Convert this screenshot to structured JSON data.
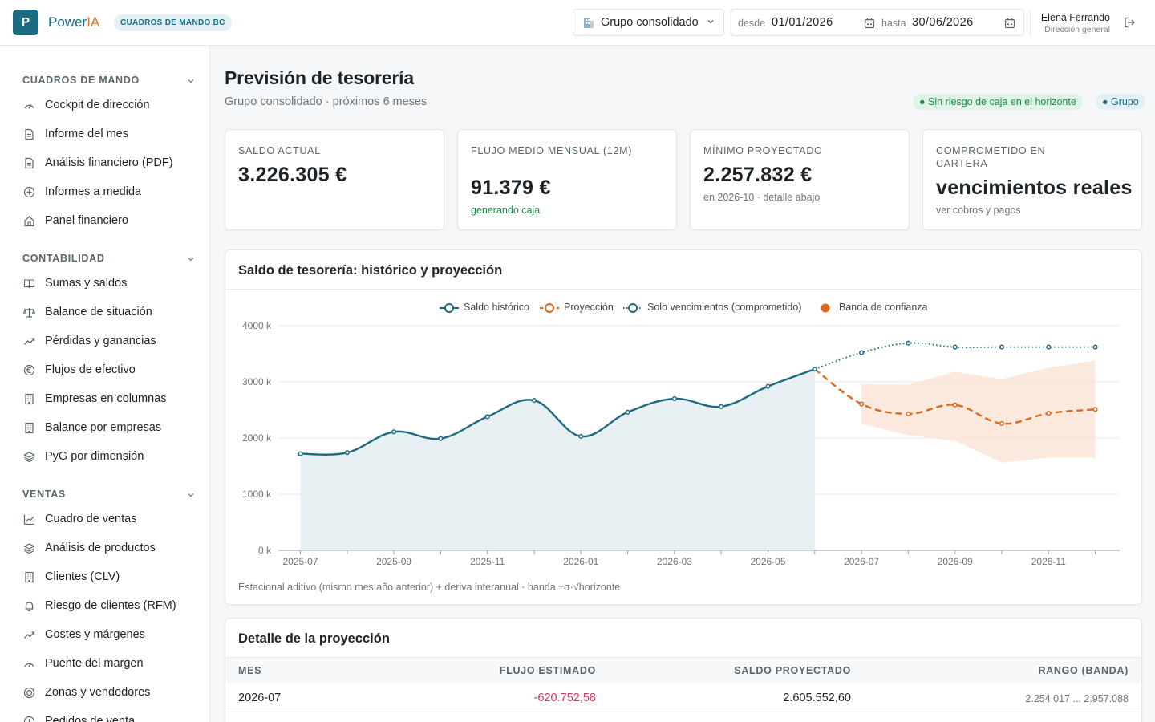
{
  "app": {
    "logo_letter": "P",
    "brand_main": "Power",
    "brand_accent": "IA",
    "badge": "CUADROS DE MANDO BC"
  },
  "topbar": {
    "company": "Grupo consolidado",
    "from_label": "desde",
    "from_value": "01/01/2026",
    "to_label": "hasta",
    "to_value": "30/06/2026",
    "user_name": "Elena Ferrando",
    "user_role": "Dirección general"
  },
  "sidebar": {
    "sections": [
      {
        "title": "CUADROS DE MANDO",
        "items": [
          {
            "label": "Cockpit de dirección",
            "icon": "gauge-icon"
          },
          {
            "label": "Informe del mes",
            "icon": "document-icon"
          },
          {
            "label": "Análisis financiero (PDF)",
            "icon": "document-icon"
          },
          {
            "label": "Informes a medida",
            "icon": "plus-circle-icon"
          },
          {
            "label": "Panel financiero",
            "icon": "home-icon"
          }
        ]
      },
      {
        "title": "CONTABILIDAD",
        "items": [
          {
            "label": "Sumas y saldos",
            "icon": "book-icon"
          },
          {
            "label": "Balance de situación",
            "icon": "scale-icon"
          },
          {
            "label": "Pérdidas y ganancias",
            "icon": "trend-icon"
          },
          {
            "label": "Flujos de efectivo",
            "icon": "euro-icon"
          },
          {
            "label": "Empresas en columnas",
            "icon": "building-icon"
          },
          {
            "label": "Balance por empresas",
            "icon": "building-icon"
          },
          {
            "label": "PyG por dimensión",
            "icon": "layers-icon"
          }
        ]
      },
      {
        "title": "VENTAS",
        "items": [
          {
            "label": "Cuadro de ventas",
            "icon": "line-chart-icon"
          },
          {
            "label": "Análisis de productos",
            "icon": "layers-icon"
          },
          {
            "label": "Clientes (CLV)",
            "icon": "building-icon"
          },
          {
            "label": "Riesgo de clientes (RFM)",
            "icon": "bell-icon"
          },
          {
            "label": "Costes y márgenes",
            "icon": "trend-icon"
          },
          {
            "label": "Puente del margen",
            "icon": "gauge-icon"
          },
          {
            "label": "Zonas y vendedores",
            "icon": "target-icon"
          },
          {
            "label": "Pedidos de venta",
            "icon": "clock-icon"
          }
        ]
      }
    ]
  },
  "page": {
    "title": "Previsión de tesorería",
    "subtitle": "Grupo consolidado · próximos 6 meses",
    "status_pill": "● Sin riesgo de caja en el horizonte",
    "scope_pill": "● Grupo"
  },
  "kpis": [
    {
      "label": "SALDO ACTUAL",
      "value": "3.226.305 €",
      "note": ""
    },
    {
      "label": "FLUJO MEDIO MENSUAL (12M)",
      "value": "91.379 €",
      "note": "generando caja"
    },
    {
      "label": "MÍNIMO PROYECTADO",
      "value": "2.257.832 €",
      "note": "en 2026-10 · detalle abajo"
    },
    {
      "label": "COMPROMETIDO EN CARTERA",
      "value": "vencimientos reales",
      "note": "ver cobros y pagos"
    }
  ],
  "chart_card": {
    "title": "Saldo de tesorería: histórico y proyección",
    "note": "Estacional aditivo (mismo mes año anterior) + deriva interanual · banda ±σ·√horizonte"
  },
  "chart_data": {
    "type": "line",
    "x": [
      "2025-07",
      "2025-08",
      "2025-09",
      "2025-10",
      "2025-11",
      "2025-12",
      "2026-01",
      "2026-02",
      "2026-03",
      "2026-04",
      "2026-05",
      "2026-06",
      "2026-07",
      "2026-08",
      "2026-09",
      "2026-10",
      "2026-11",
      "2026-12"
    ],
    "x_tick_labels": [
      "2025-07",
      "2025-09",
      "2025-11",
      "2026-01",
      "2026-03",
      "2026-05",
      "2026-07",
      "2026-09",
      "2026-11"
    ],
    "y_tick_labels": [
      "0 k",
      "1000 k",
      "2000 k",
      "3000 k",
      "4000 k"
    ],
    "ylim": [
      0,
      4000
    ],
    "y_unit": "k",
    "grid": true,
    "legend_position": "top-center",
    "series": [
      {
        "name": "Saldo histórico",
        "color": "#1c6b80",
        "style": "solid-area",
        "x": [
          "2025-07",
          "2025-08",
          "2025-09",
          "2025-10",
          "2025-11",
          "2025-12",
          "2026-01",
          "2026-02",
          "2026-03",
          "2026-04",
          "2026-05",
          "2026-06"
        ],
        "values": [
          1720,
          1740,
          2110,
          1990,
          2380,
          2670,
          2030,
          2460,
          2700,
          2560,
          2920,
          3226
        ]
      },
      {
        "name": "Proyección",
        "color": "#e0671c",
        "style": "dashed",
        "x": [
          "2026-06",
          "2026-07",
          "2026-08",
          "2026-09",
          "2026-10",
          "2026-11",
          "2026-12"
        ],
        "values": [
          3226,
          2606,
          2430,
          2590,
          2258,
          2440,
          2510
        ]
      },
      {
        "name": "Solo vencimientos (comprometido)",
        "color": "#1c6b80",
        "style": "dotted",
        "x": [
          "2026-06",
          "2026-07",
          "2026-08",
          "2026-09",
          "2026-10",
          "2026-11",
          "2026-12"
        ],
        "values": [
          3226,
          3520,
          3690,
          3620,
          3620,
          3620,
          3620
        ]
      },
      {
        "name": "Banda de confianza",
        "color": "#e0671c",
        "style": "band",
        "x": [
          "2026-07",
          "2026-08",
          "2026-09",
          "2026-10",
          "2026-11",
          "2026-12"
        ],
        "low": [
          2254,
          2050,
          1950,
          1560,
          1650,
          1650
        ],
        "high": [
          2957,
          2950,
          3180,
          3050,
          3250,
          3380
        ]
      }
    ]
  },
  "detail": {
    "title": "Detalle de la proyección",
    "headers": [
      "MES",
      "FLUJO ESTIMADO",
      "SALDO PROYECTADO",
      "RANGO (BANDA)"
    ],
    "rows": [
      {
        "month": "2026-07",
        "flow": "-620.752,58",
        "balance": "2.605.552,60",
        "range": "2.254.017 ... 2.957.088"
      }
    ]
  },
  "colors": {
    "primary": "#1c6b80",
    "accent": "#e0671c",
    "positive": "#1f8a4c",
    "negative": "#d43a5c"
  }
}
